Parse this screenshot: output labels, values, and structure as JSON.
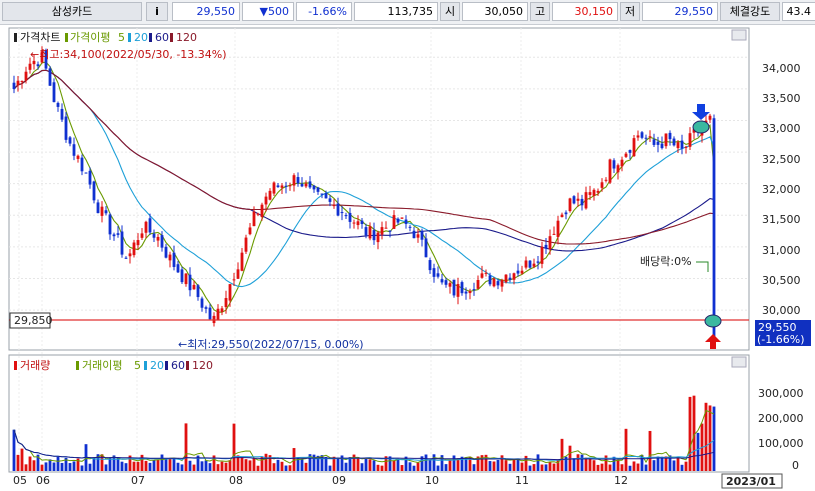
{
  "header": {
    "stock_name": "삼성카드",
    "info_button": "i",
    "price": "29,550",
    "change": "▼500",
    "change_pct": "-1.66%",
    "volume": "113,735",
    "open_label": "시",
    "open": "30,050",
    "high_label": "고",
    "high": "30,150",
    "low_label": "저",
    "low": "29,550",
    "strength_label": "체결강도",
    "strength": "43.4"
  },
  "price_panel": {
    "legend": [
      "가격차트",
      "가격이평",
      "5",
      "20",
      "60",
      "120"
    ],
    "high_annotation": "←최고:34,100(2022/05/30, -13.34%)",
    "low_annotation": "←최저:29,550(2022/07/15, 0.00%)",
    "dividend_annotation": "배당락:0%",
    "cursor_price": "29,850",
    "last_price": "29,550",
    "last_change": "(-1.66%)",
    "y_ticks": [
      "34,000",
      "33,500",
      "33,000",
      "32,500",
      "32,000",
      "31,500",
      "31,000",
      "30,500",
      "30,000"
    ]
  },
  "volume_panel": {
    "legend": [
      "거래량",
      "거래이평",
      "5",
      "20",
      "60",
      "120"
    ],
    "y_ticks": [
      "300,000",
      "200,000",
      "100,000",
      "0"
    ]
  },
  "x_axis": {
    "labels": [
      "05",
      "06",
      "07",
      "08",
      "09",
      "10",
      "11",
      "12"
    ],
    "end_label": "2023/01"
  },
  "colors": {
    "up": "#e01010",
    "down": "#1030d0",
    "ma5": "#6a9a00",
    "ma20": "#1ea0d8",
    "ma60": "#1a1a8a",
    "ma120": "#8a1a2a"
  },
  "chart_data": {
    "type": "candlestick",
    "price_ylim": [
      29400,
      34400
    ],
    "volume_ylim": [
      0,
      380000
    ],
    "x_range": [
      "2022-05",
      "2023-01"
    ],
    "series": [
      {
        "name": "가격이평 5",
        "values": []
      },
      {
        "name": "20",
        "values": []
      },
      {
        "name": "60",
        "values": []
      },
      {
        "name": "120",
        "values": []
      }
    ],
    "close_anchors": [
      33500,
      33900,
      34000,
      33200,
      32600,
      32200,
      31600,
      31200,
      30800,
      31300,
      31200,
      30800,
      30500,
      30200,
      29800,
      30300,
      30900,
      31500,
      31900,
      32000,
      32100,
      31800,
      31700,
      31600,
      31400,
      31200,
      31300,
      31400,
      31300,
      30900,
      30400,
      30300,
      30400,
      30500,
      30500,
      30600,
      30700,
      30900,
      31300,
      31700,
      31700,
      31900,
      32300,
      32500,
      32800,
      32600,
      32700,
      32500,
      32800,
      33000,
      29550
    ]
  }
}
